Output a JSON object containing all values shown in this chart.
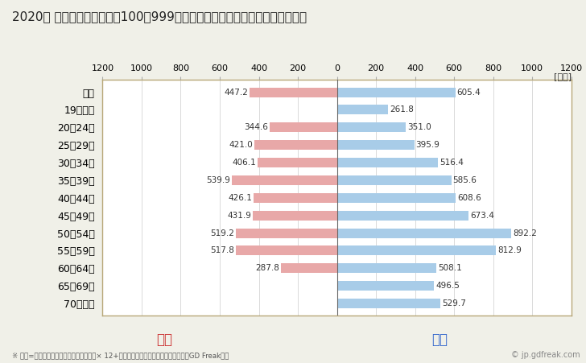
{
  "title": "2020年 民間企業（従業者数100～999人）フルタイム労働者の男女別平均年収",
  "unit_label": "[万円]",
  "categories": [
    "全体",
    "19歳以下",
    "20～24歳",
    "25～29歳",
    "30～34歳",
    "35～39歳",
    "40～44歳",
    "45～49歳",
    "50～54歳",
    "55～59歳",
    "60～64歳",
    "65～69歳",
    "70歳以上"
  ],
  "female_values": [
    447.2,
    0,
    344.6,
    421.0,
    406.1,
    539.9,
    426.1,
    431.9,
    519.2,
    517.8,
    287.8,
    0,
    0
  ],
  "male_values": [
    605.4,
    261.8,
    351.0,
    395.9,
    516.4,
    585.6,
    608.6,
    673.4,
    892.2,
    812.9,
    508.1,
    496.5,
    529.7
  ],
  "female_color": "#e8a8a8",
  "male_color": "#a8cce8",
  "female_label": "女性",
  "male_label": "男性",
  "female_text_color": "#cc3333",
  "male_text_color": "#3366cc",
  "xlim": 1200,
  "footnote": "※ 年収=「きまって支給する現金給与額」× 12+「年間賞与その他特別給与額」としてGD Freak推計",
  "watermark": "© jp.gdfreak.com",
  "background_color": "#f0f0e8",
  "plot_background_color": "#ffffff",
  "bar_height": 0.55,
  "title_fontsize": 11,
  "tick_fontsize": 8,
  "label_fontsize": 9,
  "value_fontsize": 7.5
}
